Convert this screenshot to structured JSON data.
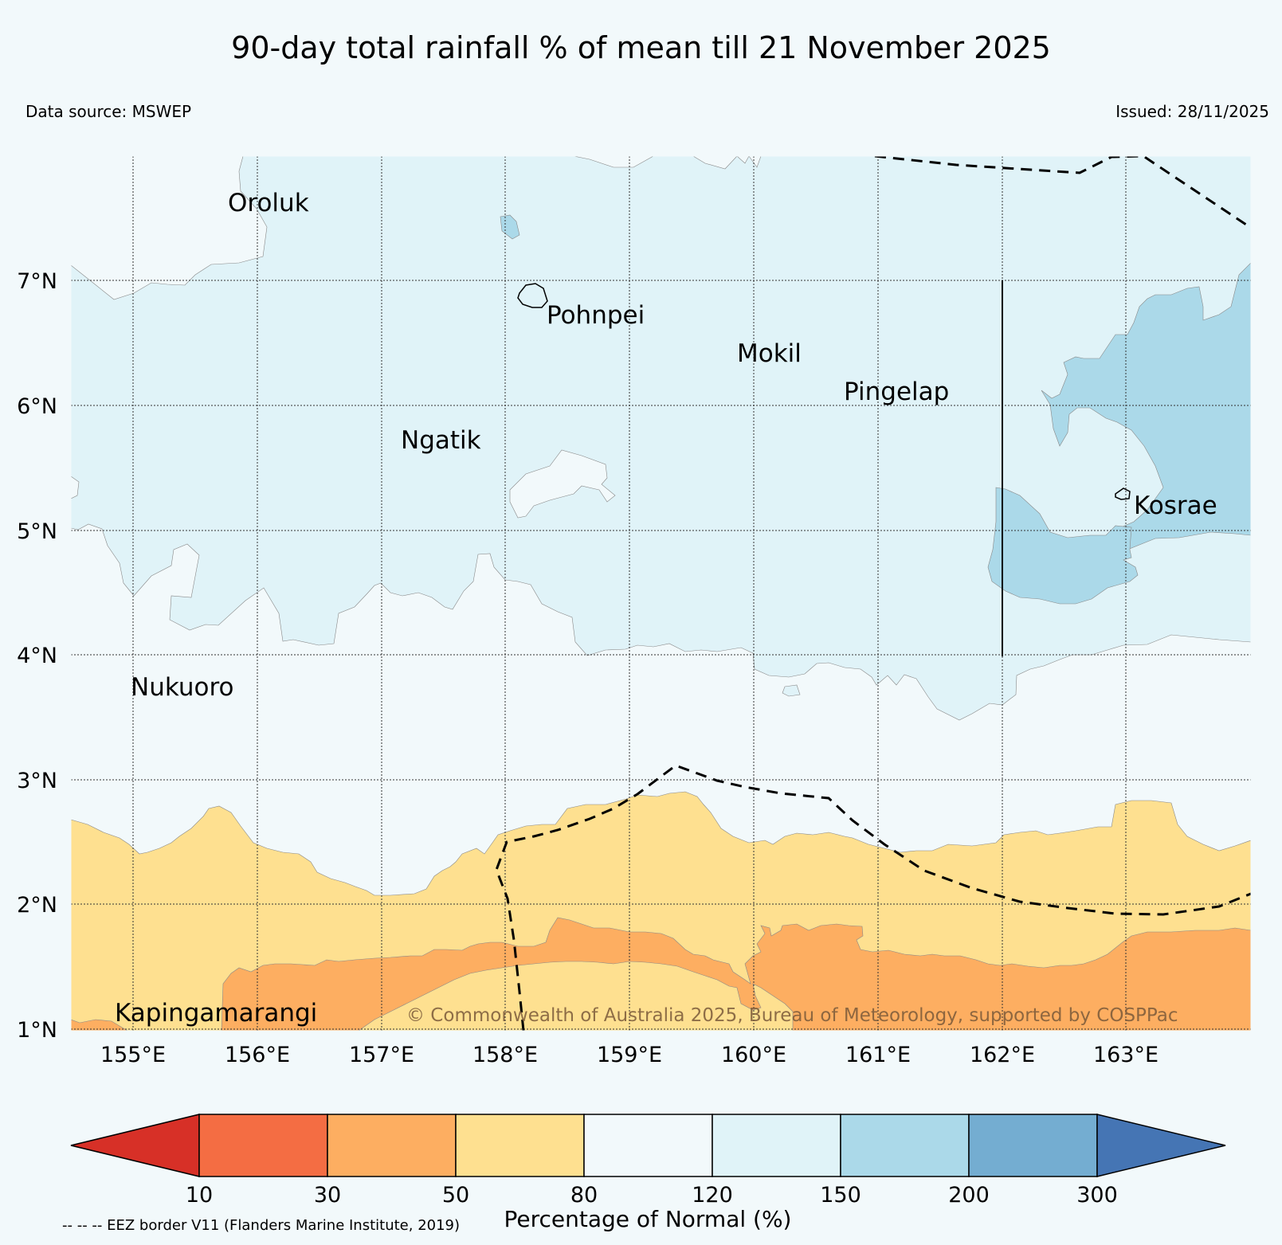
{
  "title": "90-day total rainfall % of mean till 21 November 2025",
  "data_source": "Data source: MSWEP",
  "issued": "Issued: 28/11/2025",
  "copyright": "© Commonwealth of Australia 2025, Bureau of Meteorology, supported by COSPPac",
  "eez_note": "-- -- -- EEZ border V11 (Flanders Marine Institute, 2019)",
  "map": {
    "lon_range": [
      154.5,
      164.0
    ],
    "lat_range": [
      1.0,
      8.0
    ],
    "lat_labels": [
      "1°N",
      "2°N",
      "3°N",
      "4°N",
      "5°N",
      "6°N",
      "7°N"
    ],
    "lon_labels": [
      "155°E",
      "156°E",
      "157°E",
      "158°E",
      "159°E",
      "160°E",
      "161°E",
      "162°E",
      "163°E"
    ],
    "places": [
      {
        "name": "Oroluk",
        "lon": 155.3,
        "lat": 7.6
      },
      {
        "name": "Pohnpei",
        "lon": 158.2,
        "lat": 6.85
      },
      {
        "name": "Mokil",
        "lon": 159.8,
        "lat": 6.5
      },
      {
        "name": "Pingelap",
        "lon": 160.7,
        "lat": 6.2
      },
      {
        "name": "Ngatik",
        "lon": 157.2,
        "lat": 5.8
      },
      {
        "name": "Kosrae",
        "lon": 163.0,
        "lat": 5.3
      },
      {
        "name": "Nukuoro",
        "lon": 154.9,
        "lat": 3.85
      },
      {
        "name": "Kapingamarangi",
        "lon": 154.8,
        "lat": 1.1
      }
    ]
  },
  "legend": {
    "title": "Percentage of Normal (%)",
    "ticks": [
      "10",
      "30",
      "50",
      "80",
      "120",
      "150",
      "200",
      "300"
    ],
    "colors": [
      "#d73027",
      "#f46d43",
      "#fdae61",
      "#fee090",
      "#f2f9fb",
      "#e0f3f8",
      "#abd9e9",
      "#74add1",
      "#4575b4"
    ]
  }
}
